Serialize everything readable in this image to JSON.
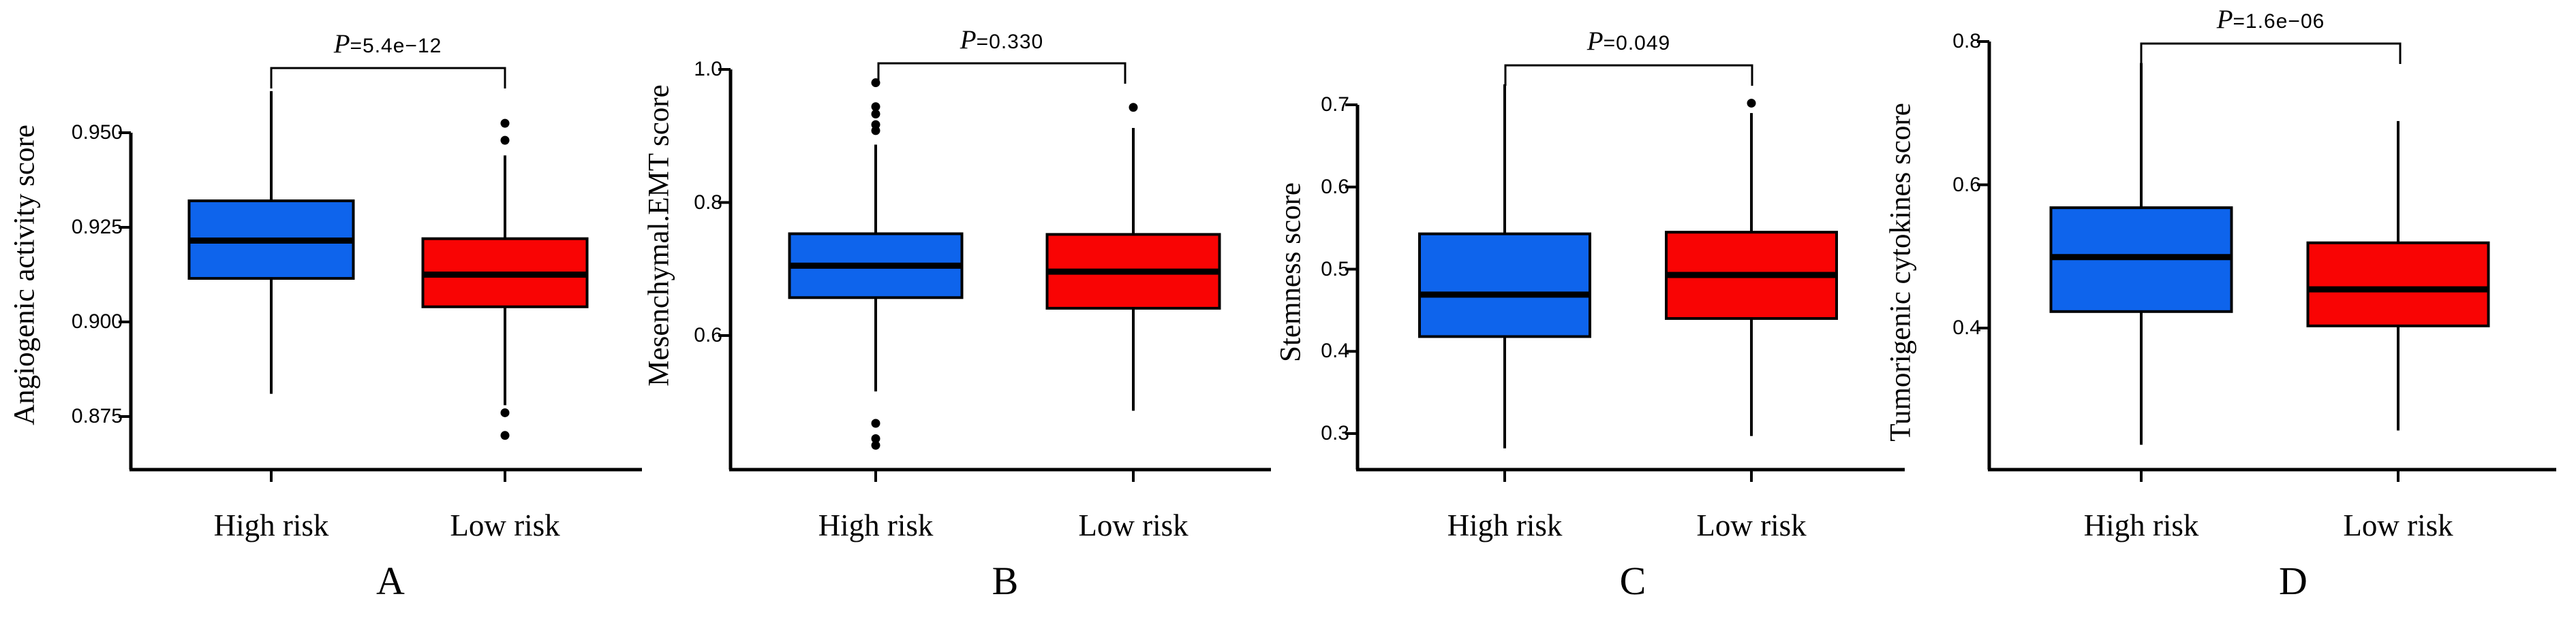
{
  "figure": {
    "background": "#ffffff"
  },
  "colors": {
    "high_risk_box": "#0E64EC",
    "low_risk_box": "#F90404",
    "stroke": "#000000"
  },
  "chart_data": [
    {
      "type": "boxplot",
      "panel_letter": "A",
      "ylabel": "Angiogenic activity score",
      "p_italic": "P",
      "p_rest": "=5.4e−12",
      "categories": [
        "High risk",
        "Low risk"
      ],
      "ylim": [
        0.861,
        0.965
      ],
      "yticks": [
        0.95,
        0.925,
        0.9,
        0.875
      ],
      "ytick_labels": [
        "0.950",
        "0.925",
        "0.900",
        "0.875"
      ],
      "grid": "off",
      "legend": "none",
      "series": [
        {
          "name": "High risk",
          "color_key": "high_risk_box",
          "whisker_low": 0.881,
          "q1": 0.9115,
          "median": 0.9215,
          "q3": 0.932,
          "whisker_high": 0.961,
          "outliers": []
        },
        {
          "name": "Low risk",
          "color_key": "low_risk_box",
          "whisker_low": 0.878,
          "q1": 0.904,
          "median": 0.9125,
          "q3": 0.922,
          "whisker_high": 0.944,
          "outliers": [
            0.9525,
            0.948,
            0.876,
            0.87
          ]
        }
      ]
    },
    {
      "type": "boxplot",
      "panel_letter": "B",
      "ylabel": "Mesenchymal.EMT score",
      "p_italic": "P",
      "p_rest": "=0.330",
      "categories": [
        "High risk",
        "Low risk"
      ],
      "ylim": [
        0.42,
        1.0
      ],
      "yticks": [
        1.0,
        0.8,
        0.6
      ],
      "ytick_labels": [
        "1.0",
        "0.8",
        "0.6"
      ],
      "grid": "off",
      "legend": "none",
      "series": [
        {
          "name": "High risk",
          "color_key": "high_risk_box",
          "whisker_low": 0.516,
          "q1": 0.657,
          "median": 0.705,
          "q3": 0.753,
          "whisker_high": 0.887,
          "outliers": [
            0.98,
            0.944,
            0.933,
            0.917,
            0.908,
            0.468,
            0.445,
            0.435
          ]
        },
        {
          "name": "Low risk",
          "color_key": "low_risk_box",
          "whisker_low": 0.487,
          "q1": 0.641,
          "median": 0.696,
          "q3": 0.752,
          "whisker_high": 0.912,
          "outliers": [
            0.943
          ]
        }
      ]
    },
    {
      "type": "boxplot",
      "panel_letter": "C",
      "ylabel": "Stemness score",
      "p_italic": "P",
      "p_rest": "=0.049",
      "categories": [
        "High risk",
        "Low risk"
      ],
      "ylim": [
        0.27,
        0.73
      ],
      "yticks": [
        0.7,
        0.6,
        0.5,
        0.4,
        0.3
      ],
      "ytick_labels": [
        "0.7",
        "0.6",
        "0.5",
        "0.4",
        "0.3"
      ],
      "grid": "off",
      "legend": "none",
      "series": [
        {
          "name": "High risk",
          "color_key": "high_risk_box",
          "whisker_low": 0.282,
          "q1": 0.418,
          "median": 0.469,
          "q3": 0.543,
          "whisker_high": 0.725,
          "outliers": []
        },
        {
          "name": "Low risk",
          "color_key": "low_risk_box",
          "whisker_low": 0.297,
          "q1": 0.44,
          "median": 0.493,
          "q3": 0.545,
          "whisker_high": 0.69,
          "outliers": [
            0.702
          ]
        }
      ]
    },
    {
      "type": "boxplot",
      "panel_letter": "D",
      "ylabel": "Tumorigenic cytokines score",
      "p_italic": "P",
      "p_rest": "=1.6e−06",
      "categories": [
        "High risk",
        "Low risk"
      ],
      "ylim": [
        0.22,
        0.8
      ],
      "yticks": [
        0.8,
        0.6,
        0.4
      ],
      "ytick_labels": [
        "0.8",
        "0.6",
        "0.4"
      ],
      "grid": "off",
      "legend": "none",
      "series": [
        {
          "name": "High risk",
          "color_key": "high_risk_box",
          "whisker_low": 0.237,
          "q1": 0.423,
          "median": 0.499,
          "q3": 0.568,
          "whisker_high": 0.77,
          "outliers": []
        },
        {
          "name": "Low risk",
          "color_key": "low_risk_box",
          "whisker_low": 0.257,
          "q1": 0.403,
          "median": 0.454,
          "q3": 0.519,
          "whisker_high": 0.689,
          "outliers": []
        }
      ]
    }
  ]
}
